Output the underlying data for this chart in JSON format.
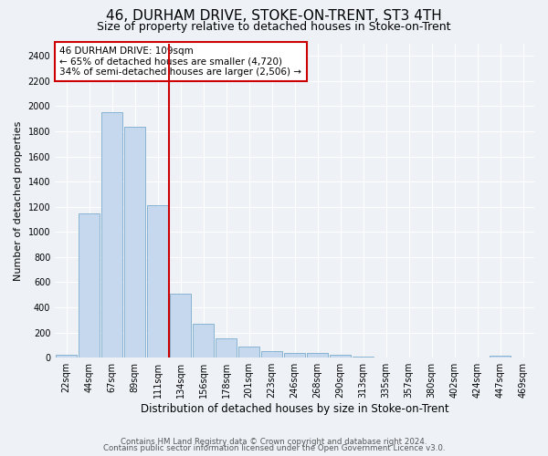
{
  "title": "46, DURHAM DRIVE, STOKE-ON-TRENT, ST3 4TH",
  "subtitle": "Size of property relative to detached houses in Stoke-on-Trent",
  "xlabel": "Distribution of detached houses by size in Stoke-on-Trent",
  "ylabel": "Number of detached properties",
  "categories": [
    "22sqm",
    "44sqm",
    "67sqm",
    "89sqm",
    "111sqm",
    "134sqm",
    "156sqm",
    "178sqm",
    "201sqm",
    "223sqm",
    "246sqm",
    "268sqm",
    "290sqm",
    "313sqm",
    "335sqm",
    "357sqm",
    "380sqm",
    "402sqm",
    "424sqm",
    "447sqm",
    "469sqm"
  ],
  "values": [
    25,
    1150,
    1950,
    1840,
    1210,
    510,
    270,
    155,
    85,
    55,
    40,
    35,
    20,
    8,
    4,
    3,
    2,
    1,
    1,
    18,
    1
  ],
  "bar_color": "#c5d8ee",
  "bar_edge_color": "#7aacce",
  "vline_x": 4.5,
  "vline_color": "#cc0000",
  "annotation_text": "46 DURHAM DRIVE: 109sqm\n← 65% of detached houses are smaller (4,720)\n34% of semi-detached houses are larger (2,506) →",
  "annotation_box_color": "#ffffff",
  "annotation_box_edge_color": "#cc0000",
  "ylim": [
    0,
    2500
  ],
  "yticks": [
    0,
    200,
    400,
    600,
    800,
    1000,
    1200,
    1400,
    1600,
    1800,
    2000,
    2200,
    2400
  ],
  "footer1": "Contains HM Land Registry data © Crown copyright and database right 2024.",
  "footer2": "Contains public sector information licensed under the Open Government Licence v3.0.",
  "bg_color": "#eef2f7",
  "plot_bg_color": "#eef2f7",
  "title_fontsize": 11,
  "subtitle_fontsize": 9,
  "tick_fontsize": 7,
  "xlabel_fontsize": 8.5,
  "ylabel_fontsize": 8
}
